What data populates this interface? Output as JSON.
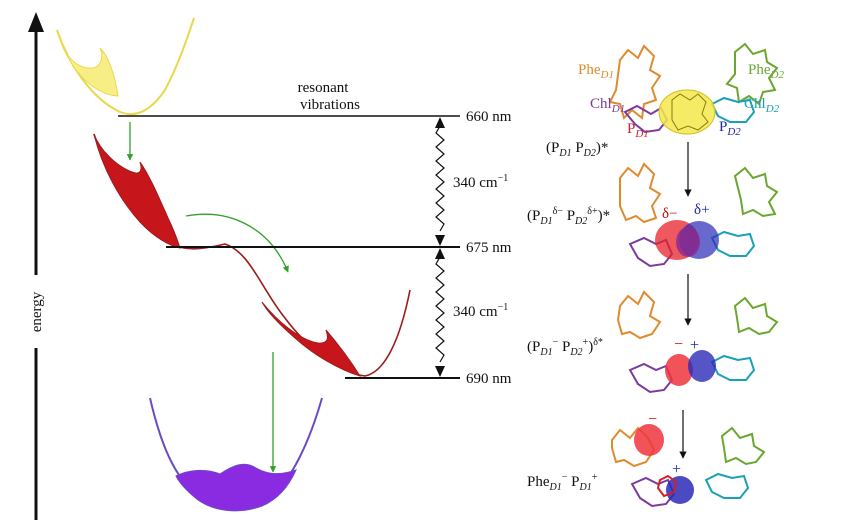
{
  "axis": {
    "label": "energy"
  },
  "annotation": {
    "line1": "resonant",
    "line2": "vibrations"
  },
  "levels": [
    {
      "label": "660 nm"
    },
    {
      "label": "675 nm"
    },
    {
      "label": "690 nm"
    }
  ],
  "gaps": [
    {
      "value": "340 cm",
      "unit_sup": "−1"
    },
    {
      "value": "340 cm",
      "unit_sup": "−1"
    }
  ],
  "molecule_labels": {
    "phe_d1": {
      "base": "Phe",
      "sub": "D1"
    },
    "phe_d2": {
      "base": "Phe",
      "sub": "D2"
    },
    "chl_d1": {
      "base": "Chl",
      "sub": "D1"
    },
    "chl_d2": {
      "base": "Chl",
      "sub": "D2"
    },
    "p_d1": {
      "base": "P",
      "sub": "D1"
    },
    "p_d2": {
      "base": "P",
      "sub": "D2"
    }
  },
  "states": [
    {
      "text": "(P_D1 P_D2)*"
    },
    {
      "text": "(P_D1^δ− P_D2^δ+)*"
    },
    {
      "text": "(P_D1^− P_D2^+)^δ*"
    },
    {
      "text": "Phe_D1^− P_D1^+"
    }
  ],
  "charges": {
    "delta_minus": "δ−",
    "delta_plus": "δ+",
    "minus": "−",
    "plus": "+"
  },
  "colors": {
    "yellow": "#f7ef86",
    "red": "#c6161c",
    "purple": "#8a2be2",
    "green": "#33a02c",
    "phe_d1": "#e08a2e",
    "phe_d2": "#6aa630",
    "chl_d1": "#7a3aa0",
    "chl_d2": "#1aa0b8",
    "p_d1": "#d0202a",
    "p_d2": "#1f2a9a"
  }
}
